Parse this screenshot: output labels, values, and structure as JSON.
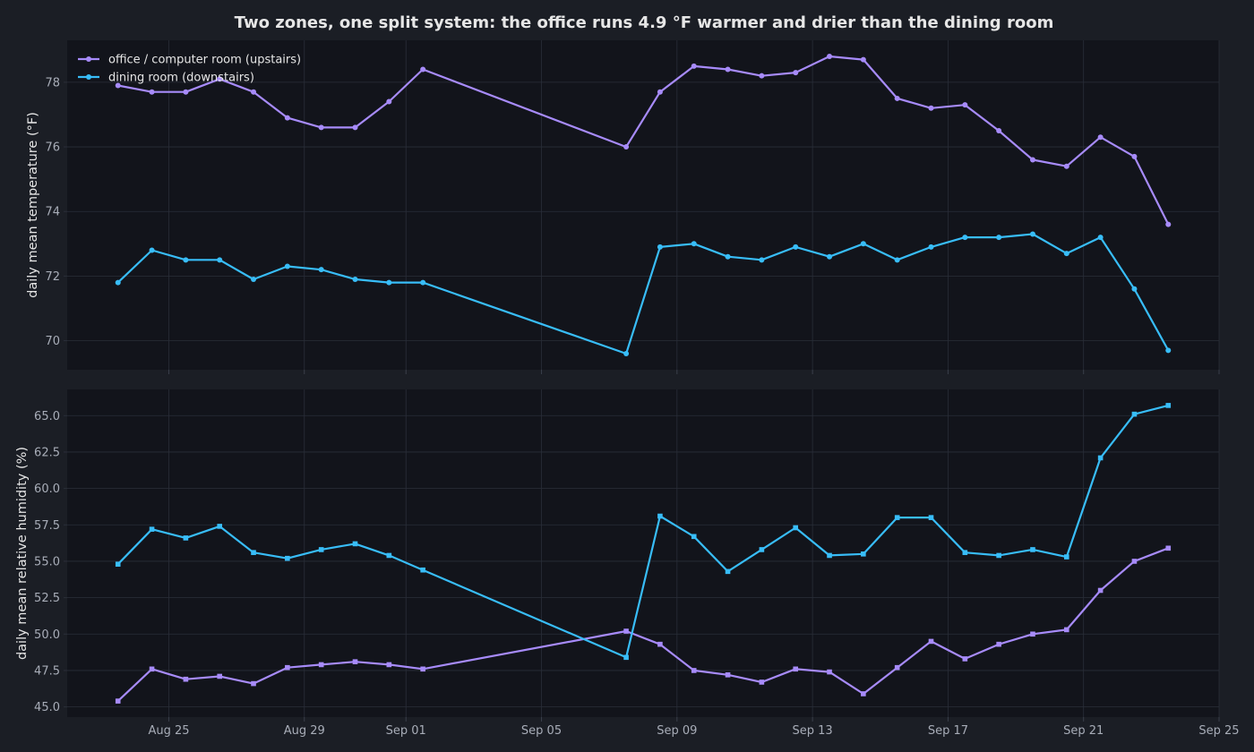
{
  "title": "Two zones, one split system: the office runs 4.9 °F warmer and drier than the dining room",
  "colors": {
    "page_bg": "#1b1e25",
    "plot_bg": "#12141b",
    "grid": "#2a2e39",
    "text": "#e6e6e6",
    "tick_text": "#a8adb8",
    "office": "#a78bfa",
    "dining": "#38bdf8"
  },
  "chart_data": [
    {
      "type": "line",
      "ylabel": "daily mean temperature (°F)",
      "ylim": [
        69.1,
        79.3
      ],
      "yticks": [
        70,
        72,
        74,
        76,
        78
      ],
      "ytick_labels": [
        "70",
        "72",
        "74",
        "76",
        "78"
      ],
      "xlim": [
        "2025-08-22",
        "2025-09-25"
      ],
      "grid": true,
      "legend_position": "top-left",
      "marker": "circle",
      "x": [
        "2025-08-23T12:00",
        "2025-08-24T12:00",
        "2025-08-25T12:00",
        "2025-08-26T12:00",
        "2025-08-27T12:00",
        "2025-08-28T12:00",
        "2025-08-29T12:00",
        "2025-08-30T12:00",
        "2025-08-31T12:00",
        "2025-09-01T12:00",
        "2025-09-07T12:00",
        "2025-09-08T12:00",
        "2025-09-09T12:00",
        "2025-09-10T12:00",
        "2025-09-11T12:00",
        "2025-09-12T12:00",
        "2025-09-13T12:00",
        "2025-09-14T12:00",
        "2025-09-15T12:00",
        "2025-09-16T12:00",
        "2025-09-17T12:00",
        "2025-09-18T12:00",
        "2025-09-19T12:00",
        "2025-09-20T12:00",
        "2025-09-21T12:00",
        "2025-09-22T12:00",
        "2025-09-23T12:00"
      ],
      "series": [
        {
          "name": "office / computer room (upstairs)",
          "color_key": "office",
          "values": [
            77.9,
            77.7,
            77.7,
            78.1,
            77.7,
            76.9,
            76.6,
            76.6,
            77.4,
            78.4,
            76.0,
            77.7,
            78.5,
            78.4,
            78.2,
            78.3,
            78.8,
            78.7,
            77.5,
            77.2,
            77.3,
            76.5,
            75.6,
            75.4,
            76.3,
            75.7,
            73.6
          ]
        },
        {
          "name": "dining room (downstairs)",
          "color_key": "dining",
          "values": [
            71.8,
            72.8,
            72.5,
            72.5,
            71.9,
            72.3,
            72.2,
            71.9,
            71.8,
            71.8,
            69.6,
            72.9,
            73.0,
            72.6,
            72.5,
            72.9,
            72.6,
            73.0,
            72.5,
            72.9,
            73.2,
            73.2,
            73.3,
            72.7,
            73.2,
            71.6,
            69.7
          ]
        }
      ]
    },
    {
      "type": "line",
      "ylabel": "daily mean relative humidity (%)",
      "ylim": [
        44.3,
        66.8
      ],
      "yticks": [
        45,
        47.5,
        50,
        52.5,
        55,
        57.5,
        60,
        62.5,
        65
      ],
      "ytick_labels": [
        "45.0",
        "47.5",
        "50.0",
        "52.5",
        "55.0",
        "57.5",
        "60.0",
        "62.5",
        "65.0"
      ],
      "xlim": [
        "2025-08-22",
        "2025-09-25"
      ],
      "grid": true,
      "marker": "square",
      "xticks": [
        "2025-08-25",
        "2025-08-29",
        "2025-09-01",
        "2025-09-05",
        "2025-09-09",
        "2025-09-13",
        "2025-09-17",
        "2025-09-21",
        "2025-09-25"
      ],
      "xtick_labels": [
        "Aug 25",
        "Aug 29",
        "Sep 01",
        "Sep 05",
        "Sep 09",
        "Sep 13",
        "Sep 17",
        "Sep 21",
        "Sep 25"
      ],
      "x": [
        "2025-08-23T12:00",
        "2025-08-24T12:00",
        "2025-08-25T12:00",
        "2025-08-26T12:00",
        "2025-08-27T12:00",
        "2025-08-28T12:00",
        "2025-08-29T12:00",
        "2025-08-30T12:00",
        "2025-08-31T12:00",
        "2025-09-01T12:00",
        "2025-09-07T12:00",
        "2025-09-08T12:00",
        "2025-09-09T12:00",
        "2025-09-10T12:00",
        "2025-09-11T12:00",
        "2025-09-12T12:00",
        "2025-09-13T12:00",
        "2025-09-14T12:00",
        "2025-09-15T12:00",
        "2025-09-16T12:00",
        "2025-09-17T12:00",
        "2025-09-18T12:00",
        "2025-09-19T12:00",
        "2025-09-20T12:00",
        "2025-09-21T12:00",
        "2025-09-22T12:00",
        "2025-09-23T12:00"
      ],
      "series": [
        {
          "name": "office / computer room (upstairs)",
          "color_key": "office",
          "values": [
            45.4,
            47.6,
            46.9,
            47.1,
            46.6,
            47.7,
            47.9,
            48.1,
            47.9,
            47.6,
            50.2,
            49.3,
            47.5,
            47.2,
            46.7,
            47.6,
            47.4,
            45.9,
            47.7,
            49.5,
            48.3,
            49.3,
            50.0,
            50.3,
            53.0,
            55.0,
            55.9
          ]
        },
        {
          "name": "dining room (downstairs)",
          "color_key": "dining",
          "values": [
            54.8,
            57.2,
            56.6,
            57.4,
            55.6,
            55.2,
            55.8,
            56.2,
            55.4,
            54.4,
            48.4,
            58.1,
            56.7,
            54.3,
            55.8,
            57.3,
            55.4,
            55.5,
            58.0,
            58.0,
            55.6,
            55.4,
            55.8,
            55.3,
            62.1,
            65.1,
            65.7
          ]
        }
      ]
    }
  ]
}
